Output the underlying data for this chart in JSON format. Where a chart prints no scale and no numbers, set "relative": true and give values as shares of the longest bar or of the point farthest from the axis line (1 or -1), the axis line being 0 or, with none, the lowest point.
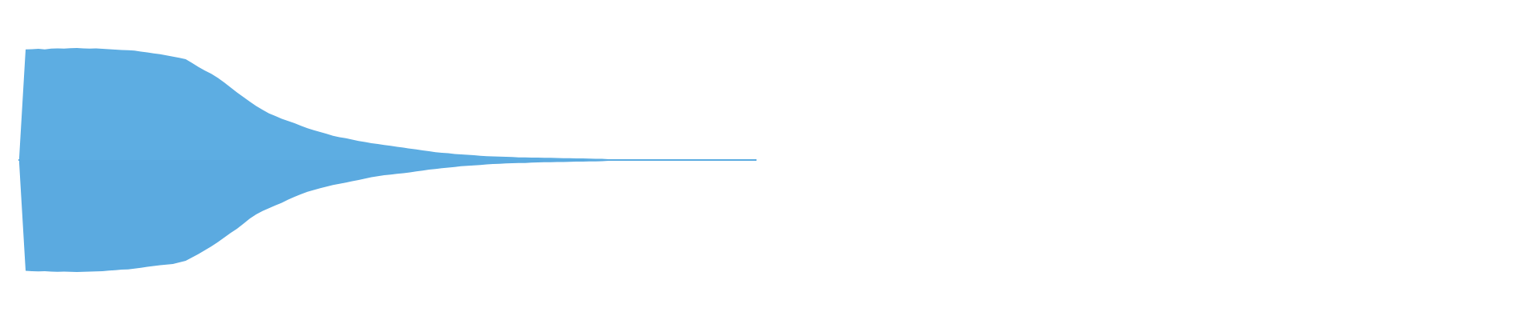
{
  "chart_data": {
    "type": "area",
    "relative": true,
    "categories": [
      null,
      null,
      null,
      null,
      null,
      null,
      null,
      null,
      null,
      null,
      null,
      null,
      null,
      null,
      null,
      null,
      null,
      null,
      null,
      null,
      null,
      null,
      null,
      null,
      null,
      null,
      null,
      null,
      null,
      null,
      null,
      null,
      null,
      null,
      null,
      null,
      null,
      null,
      null,
      null,
      null,
      null,
      null,
      null,
      null,
      null,
      null,
      null,
      null,
      null,
      null,
      null,
      null,
      null,
      null,
      null,
      null,
      null,
      null,
      null,
      null,
      null,
      null,
      null,
      null,
      null,
      null,
      null,
      null,
      null,
      null,
      null,
      null,
      null,
      null,
      null,
      null,
      null,
      null,
      null,
      null,
      null,
      null,
      null,
      null,
      null,
      null,
      null,
      null,
      null,
      null,
      null,
      null,
      null,
      null,
      null,
      null,
      null,
      null,
      null,
      null,
      null,
      null,
      null,
      null,
      null,
      null,
      null,
      null,
      null,
      null,
      null,
      null,
      null,
      null,
      null
    ],
    "series": [
      {
        "color": "#5dade2",
        "values": [
          0.024,
          0.988,
          0.99,
          0.992,
          0.988,
          0.994,
          0.996,
          0.994,
          0.998,
          1.0,
          0.996,
          0.994,
          0.996,
          0.992,
          0.99,
          0.986,
          0.982,
          0.98,
          0.976,
          0.968,
          0.96,
          0.952,
          0.944,
          0.934,
          0.924,
          0.912,
          0.9,
          0.866,
          0.83,
          0.798,
          0.77,
          0.734,
          0.692,
          0.648,
          0.604,
          0.562,
          0.522,
          0.482,
          0.448,
          0.416,
          0.392,
          0.368,
          0.348,
          0.328,
          0.306,
          0.284,
          0.266,
          0.25,
          0.234,
          0.216,
          0.204,
          0.194,
          0.182,
          0.17,
          0.16,
          0.15,
          0.142,
          0.134,
          0.126,
          0.118,
          0.11,
          0.102,
          0.094,
          0.086,
          0.078,
          0.07,
          0.064,
          0.06,
          0.054,
          0.05,
          0.046,
          0.042,
          0.038,
          0.034,
          0.032,
          0.03,
          0.028,
          0.026,
          0.024,
          0.024,
          0.022,
          0.022,
          0.02,
          0.02,
          0.018,
          0.016,
          0.016,
          0.014,
          0.014,
          0.012,
          0.01,
          0.01,
          0.008,
          0.008,
          0.008,
          0.006,
          0.006,
          0.006,
          0.006,
          0.006,
          0.006,
          0.006,
          0.006,
          0.006,
          0.006,
          0.006,
          0.006,
          0.006,
          0.006,
          0.006,
          0.006,
          0.006,
          0.006,
          0.006,
          0.006,
          0.006
        ]
      },
      {
        "color": "#5baae0",
        "values": [
          -0.028,
          -0.99,
          -0.992,
          -0.994,
          -0.992,
          -0.996,
          -0.998,
          -0.996,
          -0.998,
          -1.0,
          -0.998,
          -0.996,
          -0.994,
          -0.992,
          -0.988,
          -0.984,
          -0.978,
          -0.976,
          -0.97,
          -0.962,
          -0.954,
          -0.946,
          -0.94,
          -0.934,
          -0.928,
          -0.914,
          -0.9,
          -0.87,
          -0.84,
          -0.806,
          -0.772,
          -0.734,
          -0.692,
          -0.652,
          -0.614,
          -0.57,
          -0.524,
          -0.486,
          -0.456,
          -0.43,
          -0.406,
          -0.382,
          -0.354,
          -0.328,
          -0.306,
          -0.284,
          -0.268,
          -0.252,
          -0.238,
          -0.224,
          -0.212,
          -0.202,
          -0.19,
          -0.178,
          -0.166,
          -0.154,
          -0.144,
          -0.136,
          -0.13,
          -0.124,
          -0.118,
          -0.11,
          -0.102,
          -0.094,
          -0.086,
          -0.08,
          -0.074,
          -0.068,
          -0.062,
          -0.056,
          -0.052,
          -0.048,
          -0.044,
          -0.04,
          -0.036,
          -0.034,
          -0.03,
          -0.028,
          -0.026,
          -0.026,
          -0.024,
          -0.022,
          -0.02,
          -0.02,
          -0.018,
          -0.018,
          -0.016,
          -0.014,
          -0.014,
          -0.012,
          -0.012,
          -0.01,
          -0.008,
          -0.008,
          -0.008,
          -0.006,
          -0.006,
          -0.006,
          -0.006,
          -0.006,
          -0.006,
          -0.006,
          -0.006,
          -0.006,
          -0.006,
          -0.006,
          -0.006,
          -0.006,
          -0.006,
          -0.006,
          -0.006,
          -0.006,
          -0.006,
          -0.006,
          -0.006,
          -0.006
        ]
      }
    ]
  }
}
